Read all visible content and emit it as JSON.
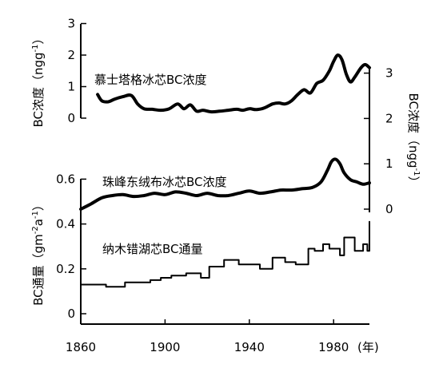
{
  "chart_data": {
    "type": "line",
    "x_axis": {
      "ticks": [
        1860,
        1900,
        1940,
        1980
      ],
      "tick_labels": [
        "1860",
        "1900",
        "1940",
        "1980"
      ],
      "range": [
        1860,
        1997
      ],
      "unit_label": "(年)"
    },
    "left_axis_upper": {
      "label": "BC浓度（ngg-1）",
      "label_main": "BC浓度（ngg",
      "label_sup": "-1",
      "label_end": "）",
      "range": [
        0,
        3
      ],
      "ticks": [
        0,
        1,
        2,
        3
      ]
    },
    "right_axis": {
      "label": "BC浓度（ngg-1）",
      "label_main": "BC浓度（ngg",
      "label_sup": "-1",
      "label_end": "）",
      "range": [
        0,
        3
      ],
      "ticks": [
        0,
        1,
        2,
        3
      ]
    },
    "left_axis_lower": {
      "label": "BC通量（gm-2a-1）",
      "label_main": "BC通量（gm",
      "label_sup1": "-2",
      "label_mid": "a",
      "label_sup2": "-1",
      "label_end": "）",
      "range": [
        0,
        0.7
      ],
      "ticks": [
        0,
        0.2,
        0.4,
        0.6
      ],
      "tick_labels": [
        "0",
        "0.2",
        "0.4",
        "0.6"
      ]
    },
    "series": [
      {
        "name": "慕士塔格冰芯BC浓度",
        "axis": "left_upper",
        "style": "smooth",
        "x": [
          1868,
          1870,
          1873,
          1876,
          1880,
          1884,
          1887,
          1890,
          1894,
          1898,
          1902,
          1906,
          1909,
          1912,
          1915,
          1918,
          1922,
          1926,
          1930,
          1934,
          1937,
          1940,
          1943,
          1946,
          1948,
          1951,
          1954,
          1957,
          1960,
          1963,
          1966,
          1969,
          1972,
          1975,
          1978,
          1980,
          1982,
          1984,
          1986,
          1988,
          1990,
          1993,
          1995,
          1997
        ],
        "values": [
          0.75,
          0.55,
          0.52,
          0.6,
          0.68,
          0.72,
          0.45,
          0.3,
          0.28,
          0.25,
          0.3,
          0.45,
          0.3,
          0.42,
          0.22,
          0.25,
          0.2,
          0.22,
          0.25,
          0.28,
          0.25,
          0.3,
          0.27,
          0.3,
          0.35,
          0.45,
          0.48,
          0.45,
          0.55,
          0.75,
          0.9,
          0.8,
          1.1,
          1.2,
          1.5,
          1.8,
          2.0,
          1.85,
          1.4,
          1.15,
          1.3,
          1.6,
          1.7,
          1.6
        ]
      },
      {
        "name": "珠峰东绒布冰芯BC浓度",
        "axis": "right",
        "style": "smooth",
        "x": [
          1860,
          1865,
          1870,
          1875,
          1880,
          1885,
          1890,
          1895,
          1900,
          1905,
          1910,
          1915,
          1920,
          1925,
          1930,
          1935,
          1940,
          1945,
          1950,
          1955,
          1960,
          1965,
          1970,
          1974,
          1977,
          1979,
          1981,
          1983,
          1985,
          1988,
          1991,
          1994,
          1997
        ],
        "values": [
          0.0,
          0.12,
          0.25,
          0.3,
          0.32,
          0.28,
          0.3,
          0.35,
          0.32,
          0.38,
          0.35,
          0.3,
          0.35,
          0.3,
          0.3,
          0.35,
          0.4,
          0.35,
          0.38,
          0.42,
          0.42,
          0.45,
          0.48,
          0.6,
          0.85,
          1.05,
          1.1,
          1.0,
          0.8,
          0.65,
          0.6,
          0.55,
          0.58
        ]
      },
      {
        "name": "纳木错湖芯BC通量",
        "axis": "left_lower",
        "style": "step",
        "x": [
          1860,
          1872,
          1881,
          1893,
          1898,
          1903,
          1910,
          1917,
          1921,
          1928,
          1935,
          1945,
          1951,
          1957,
          1962,
          1968,
          1971,
          1975,
          1978,
          1983,
          1985,
          1990,
          1994,
          1996,
          1997
        ],
        "values": [
          0.13,
          0.12,
          0.14,
          0.15,
          0.16,
          0.17,
          0.18,
          0.16,
          0.21,
          0.24,
          0.22,
          0.2,
          0.25,
          0.23,
          0.22,
          0.29,
          0.28,
          0.31,
          0.29,
          0.26,
          0.34,
          0.28,
          0.31,
          0.28,
          0.41
        ]
      }
    ],
    "annotations": [
      {
        "text": "慕士塔格冰芯BC浓度"
      },
      {
        "text": "珠峰东绒布冰芯BC浓度"
      },
      {
        "text": "纳木错湖芯BC通量"
      }
    ]
  }
}
